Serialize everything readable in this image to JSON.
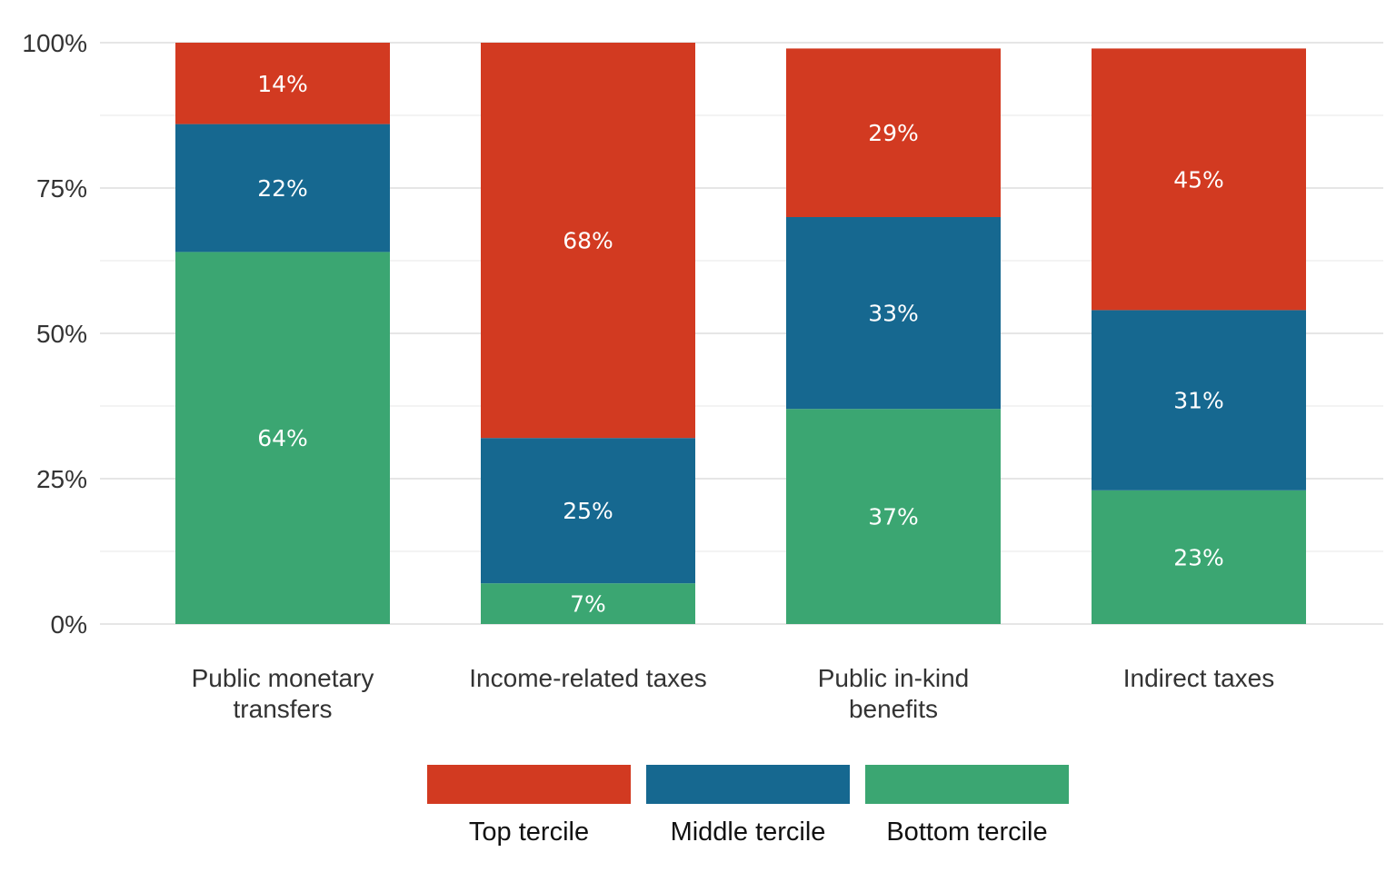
{
  "chart_data": {
    "type": "bar",
    "stacked": true,
    "categories": [
      [
        "Public monetary",
        "transfers"
      ],
      [
        "Income-related taxes"
      ],
      [
        "Public in-kind",
        "benefits"
      ],
      [
        "Indirect taxes"
      ]
    ],
    "series": [
      {
        "name": "Bottom tercile",
        "color": "#3ba672",
        "values": [
          64,
          7,
          37,
          23
        ]
      },
      {
        "name": "Middle tercile",
        "color": "#166890",
        "values": [
          22,
          25,
          33,
          31
        ]
      },
      {
        "name": "Top tercile",
        "color": "#d23a21",
        "values": [
          14,
          68,
          29,
          45
        ]
      }
    ],
    "data_labels": [
      [
        "64%",
        "7%",
        "37%",
        "23%"
      ],
      [
        "22%",
        "25%",
        "33%",
        "31%"
      ],
      [
        "14%",
        "68%",
        "29%",
        "45%"
      ]
    ],
    "ylim": [
      0,
      100
    ],
    "yticks": [
      0,
      25,
      50,
      75,
      100
    ],
    "ytick_labels": [
      "0%",
      "25%",
      "50%",
      "75%",
      "100%"
    ],
    "grid": true,
    "legend": {
      "placement": "bottom",
      "order": [
        "Top tercile",
        "Middle tercile",
        "Bottom tercile"
      ]
    },
    "title": "",
    "xlabel": "",
    "ylabel": ""
  }
}
